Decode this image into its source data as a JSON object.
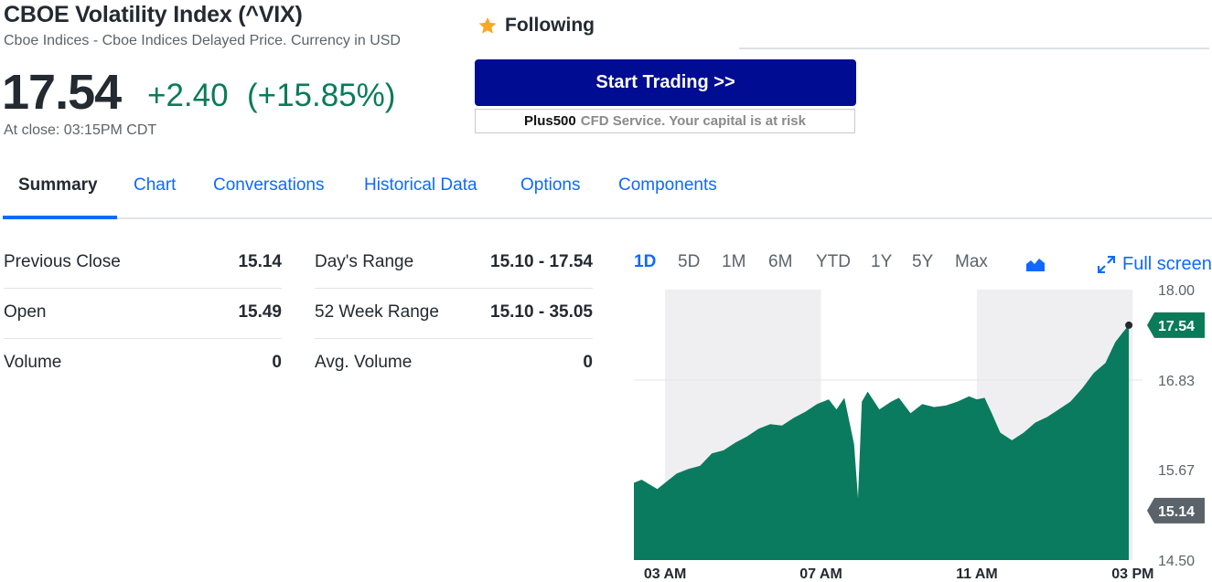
{
  "header": {
    "title": "CBOE Volatility Index (^VIX)",
    "subtitle": "Cboe Indices - Cboe Indices Delayed Price. Currency in USD",
    "price": "17.54",
    "change": "+2.40",
    "change_pct": "(+15.85%)",
    "close_time": "At close: 03:15PM CDT",
    "follow_label": "Following",
    "follow_icon": "star-icon"
  },
  "ad": {
    "button_label": "Start Trading >>",
    "brand": "Plus500",
    "note": "CFD Service. Your capital is at risk"
  },
  "tabs": [
    {
      "label": "Summary",
      "active": true
    },
    {
      "label": "Chart",
      "active": false
    },
    {
      "label": "Conversations",
      "active": false
    },
    {
      "label": "Historical Data",
      "active": false
    },
    {
      "label": "Options",
      "active": false
    },
    {
      "label": "Components",
      "active": false
    }
  ],
  "stats_left": [
    {
      "label": "Previous Close",
      "value": "15.14"
    },
    {
      "label": "Open",
      "value": "15.49"
    },
    {
      "label": "Volume",
      "value": "0"
    }
  ],
  "stats_right": [
    {
      "label": "Day's Range",
      "value": "15.10 - 17.54"
    },
    {
      "label": "52 Week Range",
      "value": "15.10 - 35.05"
    },
    {
      "label": "Avg. Volume",
      "value": "0"
    }
  ],
  "chart_controls": {
    "ranges": [
      "1D",
      "5D",
      "1M",
      "6M",
      "YTD",
      "1Y",
      "5Y",
      "Max"
    ],
    "active_range": "1D",
    "chart_type_icon": "mountain-chart-icon",
    "fullscreen_label": "Full screen",
    "fullscreen_icon": "expand-icon"
  },
  "colors": {
    "accent": "#0f69ff",
    "positive": "#0a7b58",
    "area_fill": "#0a7b5f",
    "trade_button": "#000c91",
    "prev_close_tag": "#5b636a"
  },
  "chart_data": {
    "type": "area",
    "title": "",
    "xlabel": "",
    "ylabel": "",
    "x_ticks": [
      "03 AM",
      "07 AM",
      "11 AM",
      "03 PM"
    ],
    "y_ticks": [
      "18.00",
      "16.83",
      "15.67",
      "14.50"
    ],
    "ylim": [
      14.5,
      18.0
    ],
    "current_value": "17.54",
    "previous_close": "15.14",
    "x_unit": "hours",
    "series": [
      {
        "x": [
          2.2,
          2.4,
          2.6,
          2.8,
          3.0,
          3.3,
          3.6,
          3.9,
          4.2,
          4.5,
          4.8,
          5.1,
          5.4,
          5.7,
          6.0,
          6.3,
          6.6,
          6.9,
          7.2,
          7.4,
          7.6,
          7.85,
          7.95,
          8.05,
          8.2,
          8.5,
          8.8,
          9.0,
          9.3,
          9.6,
          9.9,
          10.2,
          10.5,
          10.8,
          11.0,
          11.2,
          11.4,
          11.6,
          11.9,
          12.2,
          12.5,
          12.8,
          13.1,
          13.4,
          13.7,
          14.0,
          14.3,
          14.55,
          14.75,
          14.9
        ],
        "values": [
          15.5,
          15.54,
          15.48,
          15.42,
          15.5,
          15.62,
          15.68,
          15.72,
          15.88,
          15.92,
          16.02,
          16.1,
          16.2,
          16.26,
          16.24,
          16.34,
          16.42,
          16.52,
          16.58,
          16.45,
          16.6,
          16.0,
          15.3,
          16.55,
          16.68,
          16.45,
          16.55,
          16.6,
          16.4,
          16.52,
          16.48,
          16.5,
          16.55,
          16.62,
          16.58,
          16.6,
          16.38,
          16.15,
          16.05,
          16.15,
          16.28,
          16.35,
          16.45,
          16.55,
          16.72,
          16.92,
          17.05,
          17.32,
          17.45,
          17.54
        ]
      }
    ]
  }
}
